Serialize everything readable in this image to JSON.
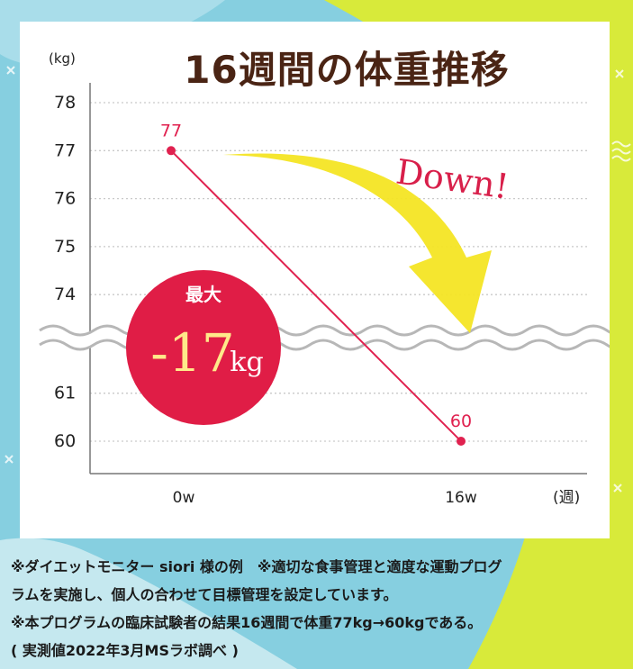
{
  "colors": {
    "title": "#4a2414",
    "line": "#e0214f",
    "badge": "#e01d46",
    "badge_text": "#ffe98a",
    "arrow": "#f4e524",
    "down_text": "#d81f4a",
    "axis": "#777777",
    "grid": "#c9c9c9",
    "wave": "#b7b7b7",
    "bg_blue": "#86cfe0",
    "bg_lime": "#d8ea3a"
  },
  "chart_data": {
    "type": "line",
    "title": "16週間の体重推移",
    "ylabel": "(kg)",
    "xlabel": "(週)",
    "categories": [
      "0w",
      "16w"
    ],
    "yticks_upper": [
      78,
      77,
      76,
      75,
      74
    ],
    "yticks_lower": [
      61,
      60
    ],
    "axis_break": "between 74 and 61 (wavy break line)",
    "grid": true,
    "series": [
      {
        "values": [
          77,
          60
        ],
        "data_labels": [
          "77",
          "60"
        ]
      }
    ],
    "annotations": {
      "arrow_label": "Down!",
      "badge_top": "最大",
      "badge_value": "-17",
      "badge_unit": "kg"
    }
  },
  "notes": [
    "※ダイエットモニター siori 様の例　※適切な食事管理と適度な運動プログ",
    "ラムを実施し、個人の合わせて目標管理を設定しています。",
    "※本プログラムの臨床試験者の結果16週間で体重77kg→60kgである。",
    "( 実測値2022年3月MSラボ調べ )"
  ]
}
